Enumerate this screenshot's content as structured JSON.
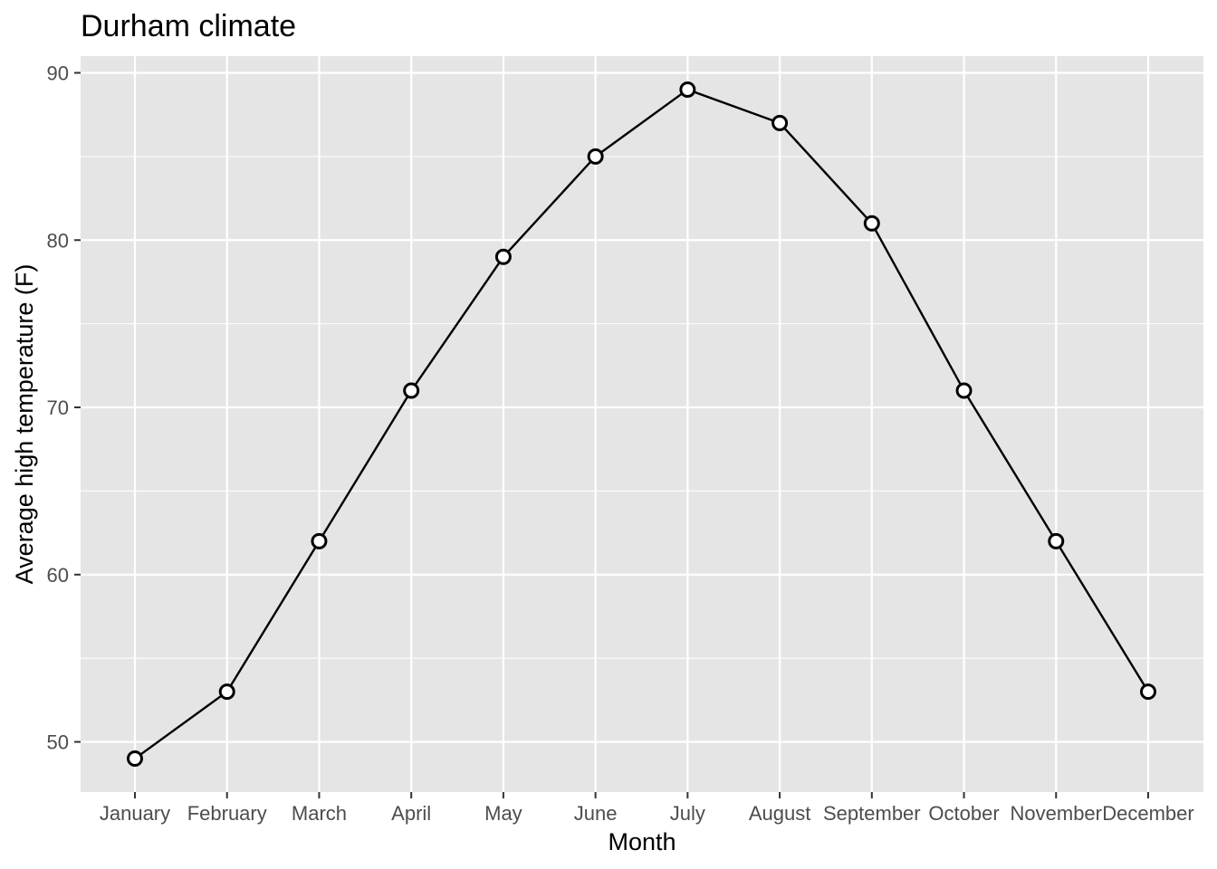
{
  "chart_data": {
    "type": "line",
    "title": "Durham climate",
    "xlabel": "Month",
    "ylabel": "Average high temperature (F)",
    "categories": [
      "January",
      "February",
      "March",
      "April",
      "May",
      "June",
      "July",
      "August",
      "September",
      "October",
      "November",
      "December"
    ],
    "values": [
      49,
      53,
      62,
      71,
      79,
      85,
      89,
      87,
      81,
      71,
      62,
      53
    ],
    "yticks": [
      50,
      60,
      70,
      80,
      90
    ],
    "ylim": [
      47,
      91
    ],
    "grid": true,
    "legend": "none",
    "colors": {
      "panel_background": "#e5e5e5",
      "grid": "#ffffff",
      "line": "#000000",
      "point_fill": "#ffffff",
      "point_stroke": "#000000",
      "tick_label": "#4d4d4d"
    }
  }
}
